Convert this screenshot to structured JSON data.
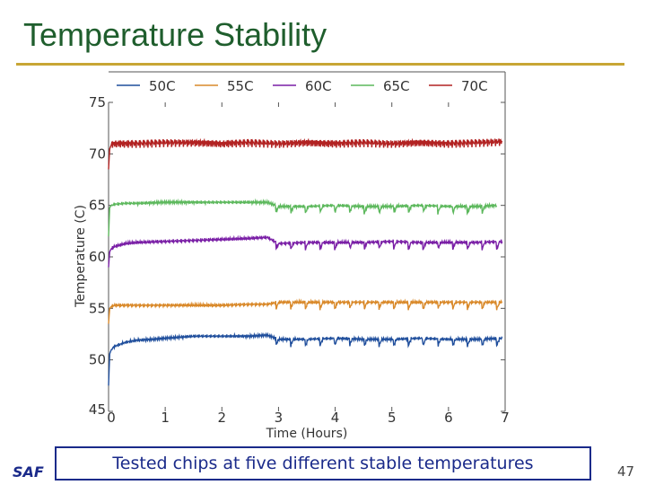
{
  "slide": {
    "title": "Temperature Stability",
    "caption": "Tested chips at five different stable temperatures",
    "page_number": "47",
    "logo_fragment": "SAF",
    "accent_color": "#c8a635",
    "title_color": "#1f5e2d"
  },
  "chart_data": {
    "type": "line",
    "title": "",
    "xlabel": "Time (Hours)",
    "ylabel": "Temperature (C)",
    "xlim": [
      0,
      7
    ],
    "ylim": [
      45,
      75
    ],
    "x_ticks": [
      "0",
      "1",
      "2",
      "3",
      "4",
      "5",
      "6",
      "7"
    ],
    "y_ticks": [
      "45",
      "50",
      "55",
      "60",
      "65",
      "70",
      "75"
    ],
    "legend_position": "top",
    "grid": false,
    "series": [
      {
        "name": "50C",
        "color": "#1f4e9c",
        "x": [
          0,
          0.02,
          0.05,
          0.1,
          0.2,
          0.3,
          0.5,
          0.8,
          1.0,
          1.5,
          2.0,
          2.5,
          2.8,
          3.0,
          3.5,
          4.0,
          4.5,
          5.0,
          5.5,
          6.0,
          6.5,
          6.95
        ],
        "y": [
          47.5,
          50.6,
          51.0,
          51.3,
          51.5,
          51.7,
          51.9,
          52.0,
          52.1,
          52.3,
          52.3,
          52.3,
          52.4,
          52.0,
          52.0,
          52.1,
          52.0,
          52.0,
          52.1,
          52.0,
          52.0,
          52.1
        ]
      },
      {
        "name": "55C",
        "color": "#d9892a",
        "x": [
          0,
          0.02,
          0.05,
          0.1,
          0.3,
          0.5,
          1.0,
          1.5,
          2.0,
          2.5,
          2.8,
          3.0,
          3.5,
          4.0,
          4.5,
          5.0,
          5.5,
          6.0,
          6.5,
          6.95
        ],
        "y": [
          53.5,
          55.0,
          55.2,
          55.3,
          55.3,
          55.3,
          55.3,
          55.3,
          55.3,
          55.4,
          55.4,
          55.6,
          55.6,
          55.6,
          55.6,
          55.6,
          55.6,
          55.6,
          55.6,
          55.6
        ]
      },
      {
        "name": "60C",
        "color": "#7a1fa6",
        "x": [
          0,
          0.02,
          0.05,
          0.1,
          0.3,
          0.5,
          1.0,
          1.5,
          2.0,
          2.5,
          2.8,
          3.0,
          3.5,
          4.0,
          4.5,
          5.0,
          5.5,
          6.0,
          6.5,
          6.95
        ],
        "y": [
          59.0,
          60.5,
          60.8,
          61.0,
          61.3,
          61.4,
          61.5,
          61.6,
          61.7,
          61.8,
          61.9,
          61.3,
          61.4,
          61.4,
          61.4,
          61.5,
          61.4,
          61.4,
          61.4,
          61.5
        ]
      },
      {
        "name": "65C",
        "color": "#5cb85c",
        "x": [
          0,
          0.02,
          0.05,
          0.1,
          0.3,
          0.5,
          1.0,
          1.5,
          2.0,
          2.5,
          2.8,
          3.0,
          3.5,
          4.0,
          4.5,
          5.0,
          5.5,
          6.0,
          6.5,
          6.85
        ],
        "y": [
          62.0,
          64.8,
          65.0,
          65.1,
          65.2,
          65.2,
          65.3,
          65.3,
          65.3,
          65.3,
          65.3,
          64.9,
          64.9,
          65.0,
          64.9,
          64.9,
          65.0,
          64.9,
          64.9,
          65.0
        ]
      },
      {
        "name": "70C",
        "color": "#b22222",
        "x": [
          0,
          0.02,
          0.05,
          0.1,
          0.3,
          0.5,
          1.0,
          1.5,
          2.0,
          2.5,
          3.0,
          3.5,
          4.0,
          4.5,
          5.0,
          5.5,
          6.0,
          6.5,
          6.95
        ],
        "y": [
          68.5,
          70.5,
          70.9,
          71.0,
          71.0,
          71.0,
          71.1,
          71.1,
          71.0,
          71.1,
          71.0,
          71.1,
          71.0,
          71.1,
          71.0,
          71.1,
          71.0,
          71.1,
          71.2
        ]
      }
    ]
  }
}
